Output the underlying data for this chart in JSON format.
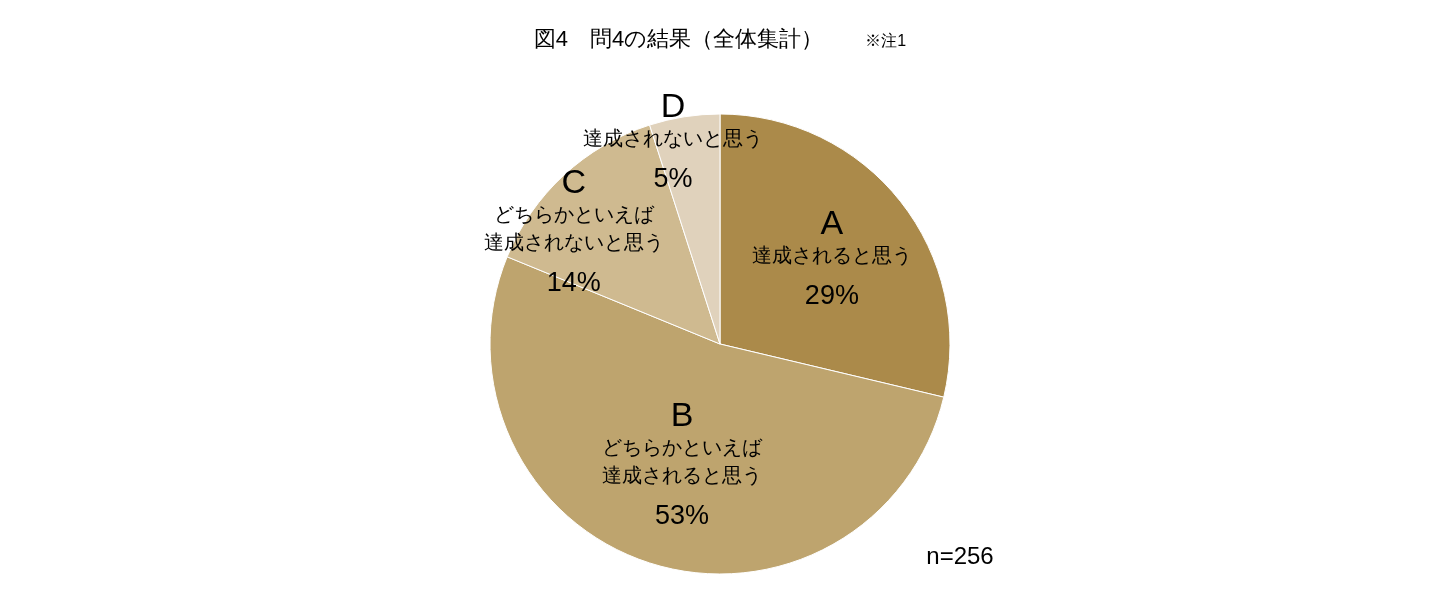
{
  "chart_data": {
    "type": "pie",
    "title": "図4　問4の結果（全体集計）",
    "categories": [
      "A\n達成されると思う",
      "B\nどちらかといえば達成されると思う",
      "C\nどちらかといえば達成されないと思う",
      "D\n達成されないと思う"
    ],
    "values": [
      29,
      53,
      14,
      5
    ],
    "colors": [
      "#ab8a4a",
      "#bea46e",
      "#cfba90",
      "#e0d2bc"
    ],
    "value_labels": [
      "29%",
      "53%",
      "14%",
      "5%"
    ],
    "annotations": [
      "※注1",
      "n=256"
    ]
  }
}
